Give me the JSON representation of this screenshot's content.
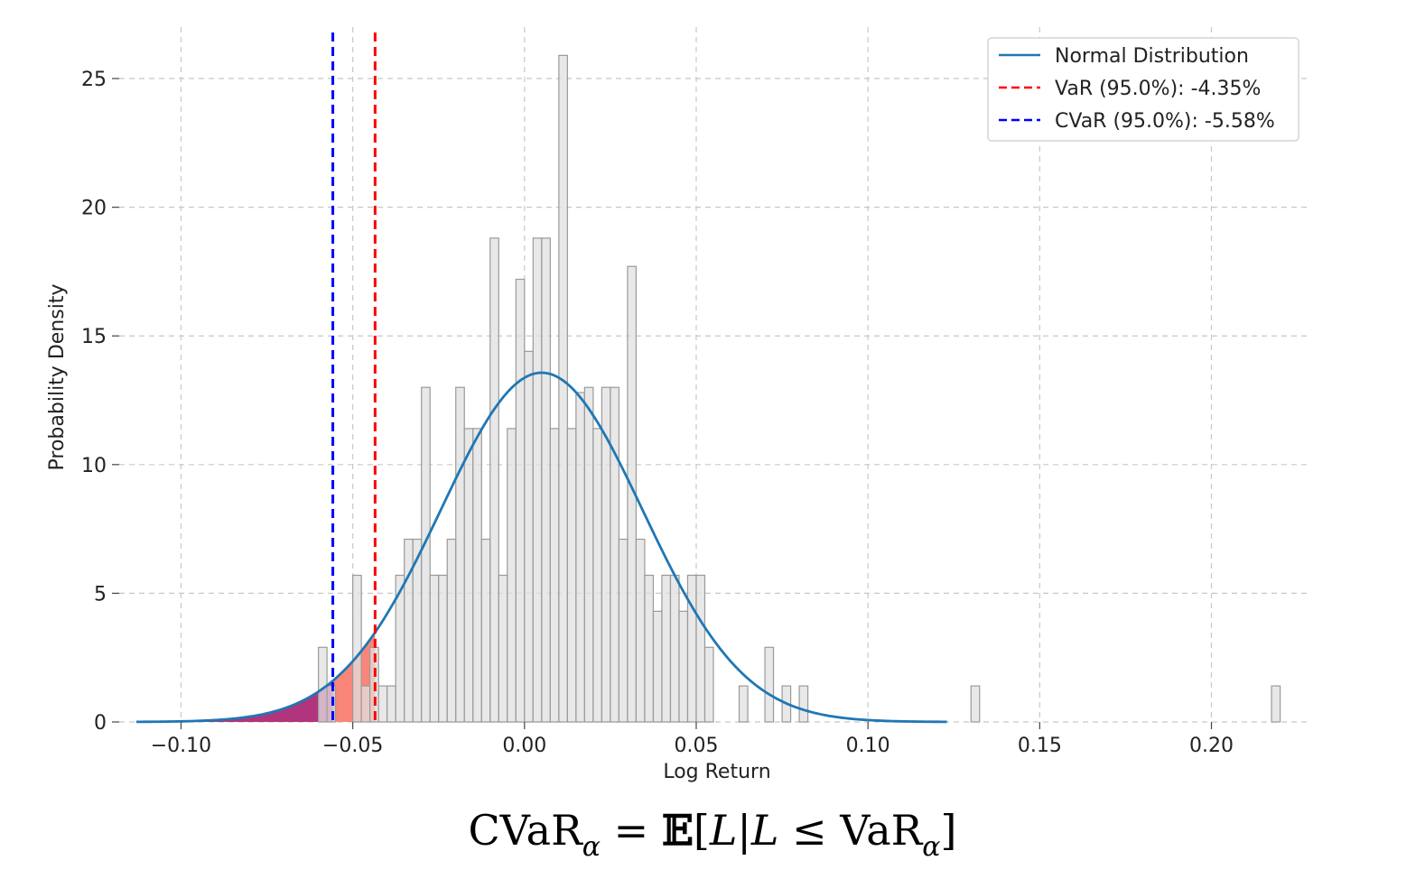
{
  "chart_data": {
    "type": "histogram",
    "xlabel": "Log Return",
    "ylabel": "Probability Density",
    "xlim": [
      -0.118,
      0.228
    ],
    "ylim": [
      0,
      27.0
    ],
    "xticks": [
      -0.1,
      -0.05,
      0.0,
      0.05,
      0.1,
      0.15,
      0.2
    ],
    "xtick_labels": [
      "−0.10",
      "−0.05",
      "0.00",
      "0.05",
      "0.10",
      "0.15",
      "0.20"
    ],
    "yticks": [
      0,
      5,
      10,
      15,
      20,
      25
    ],
    "ytick_labels": [
      "0",
      "5",
      "10",
      "15",
      "20",
      "25"
    ],
    "grid": true,
    "grid_style": "dashed",
    "legend_position": "top-right",
    "histogram": {
      "bin_width": 0.0025,
      "color": "#e0e0e0",
      "edge_color": "#9a9a9a",
      "bins": [
        {
          "x": -0.06,
          "y": 2.9
        },
        {
          "x": -0.0575,
          "y": 1.4
        },
        {
          "x": -0.05,
          "y": 5.7
        },
        {
          "x": -0.0475,
          "y": 1.4
        },
        {
          "x": -0.045,
          "y": 2.9
        },
        {
          "x": -0.0425,
          "y": 1.4
        },
        {
          "x": -0.04,
          "y": 1.4
        },
        {
          "x": -0.0375,
          "y": 5.7
        },
        {
          "x": -0.035,
          "y": 7.1
        },
        {
          "x": -0.0325,
          "y": 7.1
        },
        {
          "x": -0.03,
          "y": 13.0
        },
        {
          "x": -0.0275,
          "y": 5.7
        },
        {
          "x": -0.025,
          "y": 5.7
        },
        {
          "x": -0.0225,
          "y": 7.1
        },
        {
          "x": -0.02,
          "y": 13.0
        },
        {
          "x": -0.0175,
          "y": 11.4
        },
        {
          "x": -0.015,
          "y": 11.4
        },
        {
          "x": -0.0125,
          "y": 7.1
        },
        {
          "x": -0.01,
          "y": 18.8
        },
        {
          "x": -0.0075,
          "y": 5.7
        },
        {
          "x": -0.005,
          "y": 11.4
        },
        {
          "x": -0.0025,
          "y": 17.2
        },
        {
          "x": 0.0,
          "y": 14.4
        },
        {
          "x": 0.0025,
          "y": 18.8
        },
        {
          "x": 0.005,
          "y": 18.8
        },
        {
          "x": 0.0075,
          "y": 11.4
        },
        {
          "x": 0.01,
          "y": 25.9
        },
        {
          "x": 0.0125,
          "y": 11.4
        },
        {
          "x": 0.015,
          "y": 12.8
        },
        {
          "x": 0.0175,
          "y": 13.0
        },
        {
          "x": 0.02,
          "y": 11.4
        },
        {
          "x": 0.0225,
          "y": 13.0
        },
        {
          "x": 0.025,
          "y": 13.0
        },
        {
          "x": 0.0275,
          "y": 7.1
        },
        {
          "x": 0.03,
          "y": 17.7
        },
        {
          "x": 0.0325,
          "y": 7.1
        },
        {
          "x": 0.035,
          "y": 5.7
        },
        {
          "x": 0.0375,
          "y": 4.3
        },
        {
          "x": 0.04,
          "y": 5.7
        },
        {
          "x": 0.0425,
          "y": 5.7
        },
        {
          "x": 0.045,
          "y": 4.3
        },
        {
          "x": 0.0475,
          "y": 5.7
        },
        {
          "x": 0.05,
          "y": 5.7
        },
        {
          "x": 0.0525,
          "y": 2.9
        },
        {
          "x": 0.0625,
          "y": 1.4
        },
        {
          "x": 0.07,
          "y": 2.9
        },
        {
          "x": 0.075,
          "y": 1.4
        },
        {
          "x": 0.08,
          "y": 1.4
        },
        {
          "x": 0.13,
          "y": 1.4
        },
        {
          "x": 0.2175,
          "y": 1.4
        }
      ]
    },
    "normal_curve": {
      "name": "Normal Distribution",
      "mean": 0.005,
      "std": 0.0294,
      "x_range": [
        -0.113,
        0.123
      ],
      "color": "#1f77b4"
    },
    "var": {
      "label": "VaR (95.0%): -4.35%",
      "x": -0.0435,
      "color": "#ff0000"
    },
    "cvar": {
      "label": "CVaR (95.0%): -5.58%",
      "x": -0.0558,
      "color": "#0000ff"
    },
    "shading": {
      "var_tail_color": "#fa8072",
      "cvar_tail_color": "#800080"
    }
  },
  "formula": {
    "lhs": "CVaR",
    "sub1": "α",
    "eq": " = ",
    "expect": "𝔼",
    "bracket_open": "[",
    "L1": "L",
    "bar": "|",
    "L2": "L",
    "leq": " ≤ ",
    "var_text": "VaR",
    "sub2": "α",
    "bracket_close": "]"
  }
}
